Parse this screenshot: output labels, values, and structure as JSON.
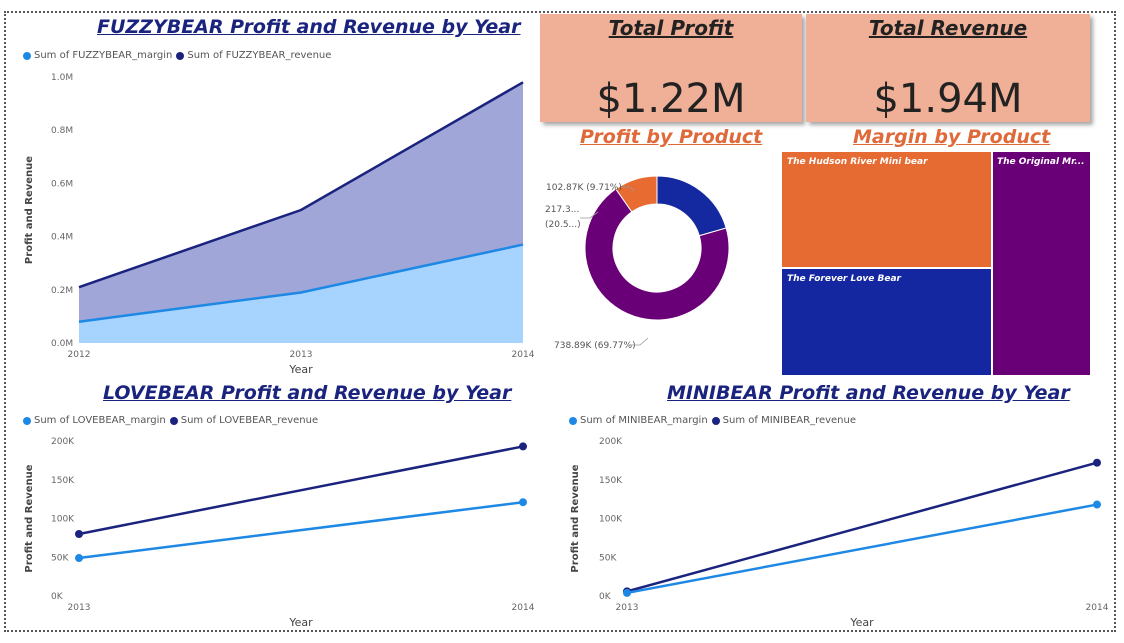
{
  "colors": {
    "light_blue": "#1e88e5",
    "dark_blue": "#1a237e",
    "area_revenue": "#a0a6d8",
    "area_margin": "#a6d4ff",
    "card_bg": "#f0b097",
    "title_blue": "#1a237e",
    "title_orange": "#e0693a",
    "donut_purple": "#6a0077",
    "donut_blue": "#1428a0",
    "donut_orange": "#e86b32",
    "tm_orange": "#e66b33",
    "tm_blue": "#1426a0",
    "tm_purple": "#6a0077"
  },
  "cards": {
    "profit": {
      "title": "Total Profit",
      "value": "$1.22M"
    },
    "revenue": {
      "title": "Total Revenue",
      "value": "$1.94M"
    }
  },
  "fuzzy": {
    "title": "FUZZYBEAR Profit and Revenue by Year",
    "legend_margin": "Sum of FUZZYBEAR_margin",
    "legend_revenue": "Sum of FUZZYBEAR_revenue",
    "xlabel": "Year",
    "ylabel": "Profit and Revenue"
  },
  "love": {
    "title": "LOVEBEAR Profit and Revenue by Year",
    "legend_margin": "Sum of LOVEBEAR_margin",
    "legend_revenue": "Sum of LOVEBEAR_revenue",
    "xlabel": "Year",
    "ylabel": "Profit and Revenue"
  },
  "mini": {
    "title": "MINIBEAR Profit and Revenue by Year",
    "legend_margin": "Sum of MINIBEAR_margin",
    "legend_revenue": "Sum of MINIBEAR_revenue",
    "xlabel": "Year",
    "ylabel": "Profit and Revenue"
  },
  "profit_title": "Profit by Product",
  "margin_title": "Margin by Product",
  "chart_data": [
    {
      "type": "area",
      "x": [
        "2012",
        "2013",
        "2014"
      ],
      "yticks": [
        "0.0M",
        "0.2M",
        "0.4M",
        "0.6M",
        "0.8M",
        "1.0M"
      ],
      "ylim": [
        0,
        1.0
      ],
      "series": [
        {
          "name": "Sum of FUZZYBEAR_revenue",
          "values": [
            0.21,
            0.5,
            0.98
          ]
        },
        {
          "name": "Sum of FUZZYBEAR_margin",
          "values": [
            0.08,
            0.19,
            0.37
          ]
        }
      ]
    },
    {
      "type": "line",
      "x": [
        "2013",
        "2014"
      ],
      "yticks": [
        "0K",
        "50K",
        "100K",
        "150K",
        "200K"
      ],
      "ylim": [
        0,
        200
      ],
      "series": [
        {
          "name": "Sum of LOVEBEAR_revenue",
          "values": [
            80,
            193
          ]
        },
        {
          "name": "Sum of LOVEBEAR_margin",
          "values": [
            49,
            121
          ]
        }
      ]
    },
    {
      "type": "line",
      "x": [
        "2013",
        "2014"
      ],
      "yticks": [
        "0K",
        "50K",
        "100K",
        "150K",
        "200K"
      ],
      "ylim": [
        0,
        200
      ],
      "series": [
        {
          "name": "Sum of MINIBEAR_revenue",
          "values": [
            6,
            172
          ]
        },
        {
          "name": "Sum of MINIBEAR_margin",
          "values": [
            4,
            118
          ]
        }
      ]
    },
    {
      "type": "pie",
      "slices": [
        {
          "label": "102.87K (9.71%)",
          "value": 102.87
        },
        {
          "label_line1": "217.3...",
          "label_line2": "(20.5...)",
          "value": 217.3
        },
        {
          "label": "738.89K (69.77%)",
          "value": 738.89
        }
      ]
    },
    {
      "type": "treemap",
      "items": [
        {
          "label": "The Hudson River Mini bear"
        },
        {
          "label": "The Forever Love Bear"
        },
        {
          "label": "The Original Mr..."
        }
      ]
    }
  ]
}
